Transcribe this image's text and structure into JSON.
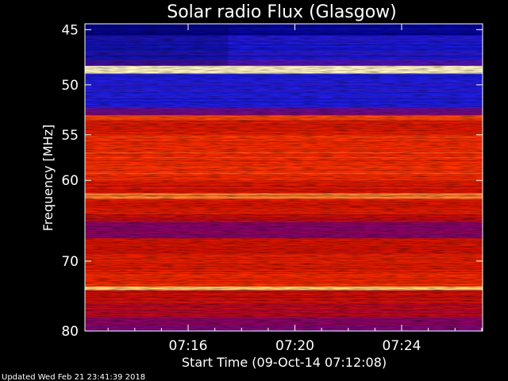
{
  "chart_data": {
    "type": "heatmap",
    "title": "Solar radio Flux (Glasgow)",
    "ylabel": "Frequency [MHz]",
    "xlabel": "Start Time (09-Oct-14 07:12:08)",
    "footer": "Updated Wed Feb 21 23:41:39 2018",
    "x_start": "07:12:08",
    "x_end": "07:27:02",
    "x_ticks": [
      "07:16",
      "07:20",
      "07:24"
    ],
    "x_tick_minutes": [
      16,
      20,
      24
    ],
    "y_ticks": [
      45,
      50,
      55,
      60,
      70,
      80
    ],
    "y_scale": "log",
    "ylim": [
      80,
      44.5
    ],
    "y_direction": "downward",
    "colormap": [
      "#00008a",
      "#1f1fe8",
      "#9a0050",
      "#d01000",
      "#ff3000",
      "#ffd060",
      "#ffffe0"
    ],
    "bands": [
      {
        "f_from": 44.5,
        "f_to": 45.5,
        "level": 0.02
      },
      {
        "f_from": 45.5,
        "f_to": 47.6,
        "level": 0.14
      },
      {
        "f_from": 47.6,
        "f_to": 48.2,
        "level": 0.24
      },
      {
        "f_from": 48.2,
        "f_to": 48.9,
        "level": 0.97
      },
      {
        "f_from": 48.9,
        "f_to": 52.2,
        "level": 0.16
      },
      {
        "f_from": 52.2,
        "f_to": 53.0,
        "level": 0.28
      },
      {
        "f_from": 53.0,
        "f_to": 53.5,
        "level": 0.7
      },
      {
        "f_from": 53.5,
        "f_to": 55.0,
        "level": 0.56
      },
      {
        "f_from": 55.0,
        "f_to": 60.0,
        "level": 0.64
      },
      {
        "f_from": 60.0,
        "f_to": 61.5,
        "level": 0.54
      },
      {
        "f_from": 61.5,
        "f_to": 62.2,
        "level": 0.74
      },
      {
        "f_from": 62.2,
        "f_to": 64.0,
        "level": 0.54
      },
      {
        "f_from": 64.0,
        "f_to": 65.0,
        "level": 0.46
      },
      {
        "f_from": 65.0,
        "f_to": 67.0,
        "level": 0.3
      },
      {
        "f_from": 67.0,
        "f_to": 69.0,
        "level": 0.52
      },
      {
        "f_from": 69.0,
        "f_to": 71.5,
        "level": 0.56
      },
      {
        "f_from": 71.5,
        "f_to": 73.5,
        "level": 0.64
      },
      {
        "f_from": 73.5,
        "f_to": 74.0,
        "level": 0.85
      },
      {
        "f_from": 74.0,
        "f_to": 76.0,
        "level": 0.48
      },
      {
        "f_from": 76.0,
        "f_to": 78.0,
        "level": 0.42
      },
      {
        "f_from": 78.0,
        "f_to": 80.0,
        "level": 0.3
      }
    ]
  }
}
